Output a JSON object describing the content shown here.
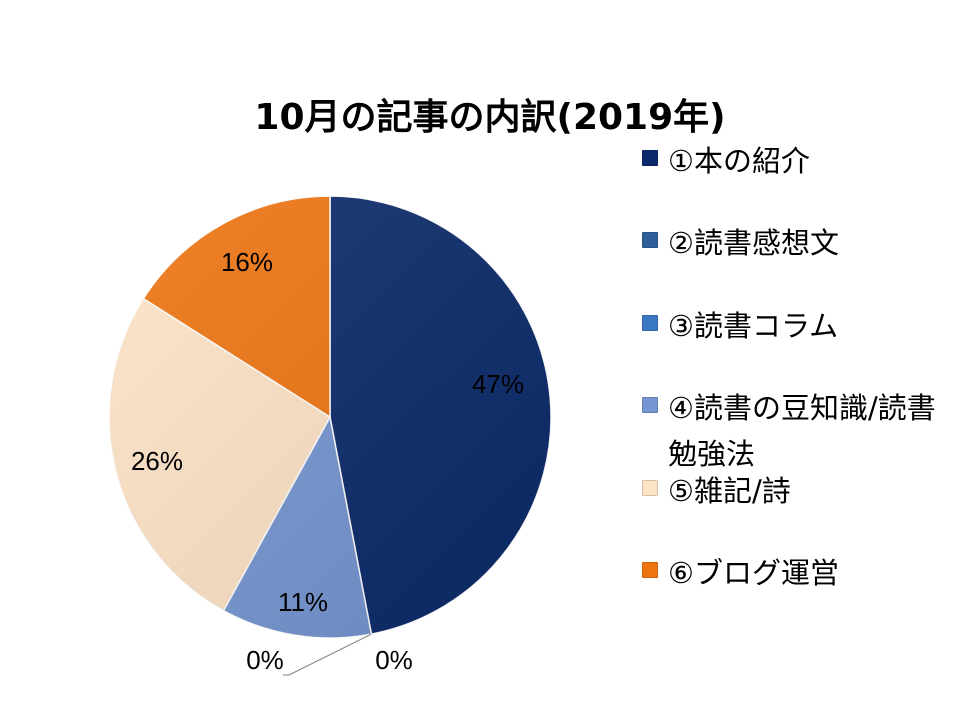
{
  "chart_data": {
    "type": "pie",
    "title": "10月の記事の内訳(2019年)",
    "categories": [
      "①本の紹介",
      "②読書感想文",
      "③読書コラム",
      "④読書の豆知識/読書勉強法",
      "⑤雑記/詩",
      "⑥ブログ運営"
    ],
    "values": [
      47,
      0,
      0,
      11,
      26,
      16
    ],
    "labels": [
      "47%",
      "0%",
      "0%",
      "11%",
      "26%",
      "16%"
    ],
    "colors": [
      "#0b2a6b",
      "#2f5f9a",
      "#3b78c4",
      "#7596d2",
      "#fde3c6",
      "#ee7411"
    ],
    "legend_position": "right"
  }
}
